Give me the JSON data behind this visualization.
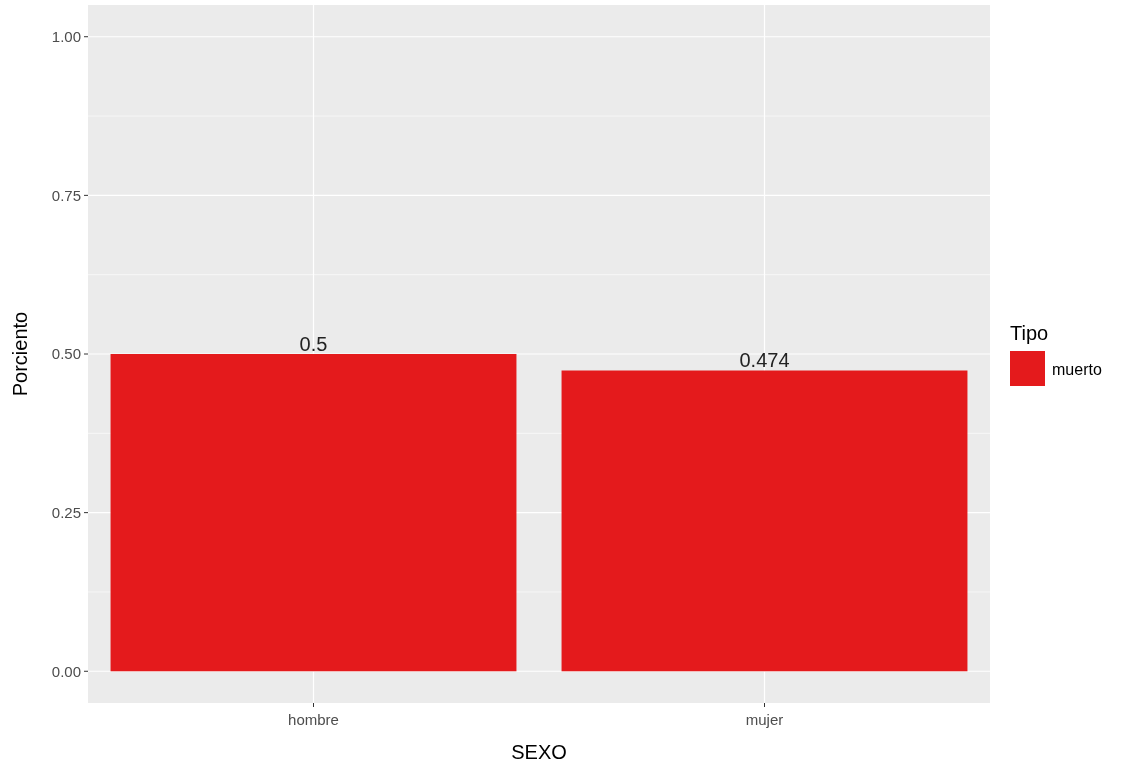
{
  "chart_data": {
    "type": "bar",
    "xlabel": "SEXO",
    "ylabel": "Porciento",
    "legend_title": "Tipo",
    "categories": [
      "hombre",
      "mujer"
    ],
    "series": [
      {
        "name": "muerto",
        "color": "#e41a1c",
        "values": [
          0.5,
          0.474
        ]
      }
    ],
    "ylim": [
      -0.05,
      1.05
    ],
    "yticks": [
      {
        "value": 0,
        "label": "0.00"
      },
      {
        "value": 0.25,
        "label": "0.25"
      },
      {
        "value": 0.5,
        "label": "0.50"
      },
      {
        "value": 0.75,
        "label": "0.75"
      },
      {
        "value": 1,
        "label": "1.00"
      }
    ],
    "grid": true,
    "legend": "right",
    "data_labels": true
  }
}
